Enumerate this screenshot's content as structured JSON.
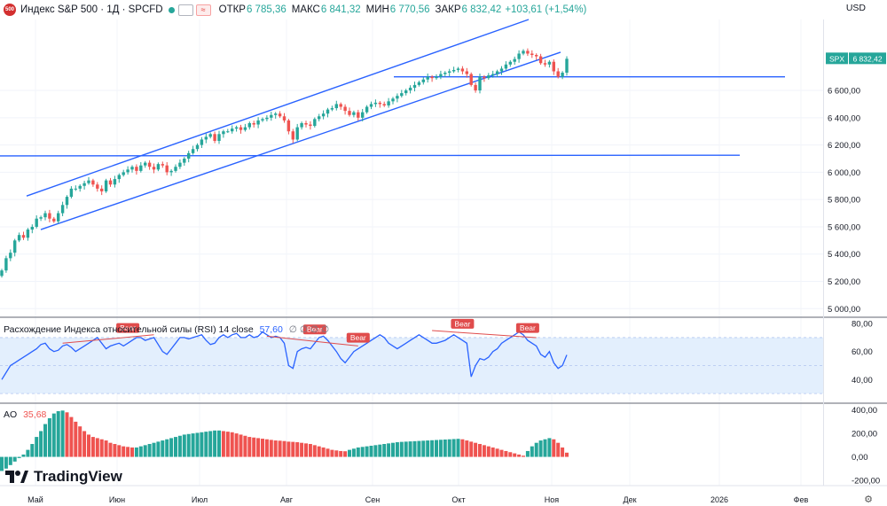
{
  "header": {
    "logo_badge": "500",
    "title": "Индекс S&P 500 · 1Д · SPCFD",
    "open_label": "ОТКР",
    "open_value": "6 785,36",
    "high_label": "МАКС",
    "high_value": "6 841,32",
    "low_label": "МИН",
    "low_value": "6 770,56",
    "close_label": "ЗАКР",
    "close_value": "6 832,42",
    "change": "+103,61 (+1,54%)",
    "currency": "USD"
  },
  "price_tag": {
    "symbol": "SPX",
    "value": "6 832,42"
  },
  "rsi_header": {
    "name": "Расхождение Индекса относительной силы (RSI)",
    "params": "14 close",
    "value": "57,60",
    "extra": "∅ ∅ ∅ ∅"
  },
  "ao_header": {
    "name": "AO",
    "value": "35,68"
  },
  "brand": "TradingView",
  "colors": {
    "up": "#26a69a",
    "down": "#ef5350",
    "line": "#2962ff",
    "rsi_band": "#e3effd",
    "bear": "#e04c4c"
  },
  "chart_data": [
    {
      "type": "candlestick",
      "ylim": [
        4950,
        7120
      ],
      "y_ticks": [
        "5 000,00",
        "5 200,00",
        "5 400,00",
        "5 600,00",
        "5 800,00",
        "6 000,00",
        "6 200,00",
        "6 400,00",
        "6 600,00"
      ],
      "x_ticks": [
        "Май",
        "Июн",
        "Июл",
        "Авг",
        "Сен",
        "Окт",
        "Ноя",
        "Дек",
        "2026",
        "Фев"
      ],
      "closes": [
        5280,
        5370,
        5410,
        5500,
        5540,
        5520,
        5580,
        5600,
        5660,
        5670,
        5700,
        5660,
        5640,
        5700,
        5760,
        5820,
        5880,
        5880,
        5900,
        5920,
        5940,
        5910,
        5880,
        5860,
        5940,
        5910,
        5950,
        5980,
        6000,
        6020,
        6040,
        6010,
        6050,
        6070,
        6040,
        6020,
        6060,
        6050,
        6000,
        6010,
        6040,
        6070,
        6100,
        6140,
        6170,
        6200,
        6240,
        6260,
        6280,
        6230,
        6280,
        6300,
        6300,
        6320,
        6330,
        6310,
        6330,
        6360,
        6350,
        6380,
        6390,
        6400,
        6420,
        6430,
        6410,
        6380,
        6300,
        6240,
        6330,
        6360,
        6350,
        6340,
        6390,
        6410,
        6430,
        6460,
        6470,
        6500,
        6480,
        6450,
        6420,
        6440,
        6400,
        6440,
        6480,
        6500,
        6510,
        6500,
        6490,
        6520,
        6540,
        6560,
        6580,
        6600,
        6620,
        6640,
        6660,
        6680,
        6700,
        6690,
        6700,
        6720,
        6730,
        6740,
        6750,
        6760,
        6740,
        6720,
        6640,
        6600,
        6700,
        6690,
        6710,
        6720,
        6740,
        6760,
        6790,
        6810,
        6830,
        6870,
        6890,
        6870,
        6860,
        6850,
        6800,
        6790,
        6810,
        6740,
        6700,
        6730,
        6832
      ],
      "horizontal_levels": [
        6700,
        6120
      ],
      "channel_upper": [
        [
          5826,
          7120
        ],
        [
          3,
          1
        ]
      ],
      "annotations": [
        "Bear",
        "Bear",
        "Bear",
        "Bear",
        "Bear"
      ]
    },
    {
      "type": "line",
      "name": "RSI",
      "ylim": [
        25,
        82
      ],
      "y_ticks": [
        "40,00",
        "60,00",
        "80,00"
      ],
      "values": [
        40,
        45,
        50,
        52,
        54,
        56,
        58,
        60,
        62,
        65,
        66,
        62,
        60,
        61,
        64,
        65,
        63,
        60,
        62,
        64,
        66,
        68,
        70,
        66,
        62,
        64,
        65,
        66,
        64,
        66,
        68,
        70,
        70,
        68,
        69,
        70,
        65,
        60,
        58,
        62,
        66,
        70,
        70,
        69,
        70,
        71,
        72,
        68,
        65,
        66,
        70,
        72,
        70,
        72,
        73,
        70,
        70,
        72,
        70,
        71,
        74,
        72,
        70,
        71,
        70,
        66,
        50,
        48,
        60,
        62,
        63,
        62,
        66,
        70,
        71,
        68,
        64,
        60,
        55,
        52,
        56,
        60,
        62,
        64,
        66,
        68,
        70,
        72,
        70,
        66,
        64,
        62,
        64,
        66,
        68,
        70,
        72,
        70,
        68,
        66,
        66,
        67,
        68,
        70,
        72,
        70,
        68,
        66,
        42,
        50,
        55,
        54,
        56,
        60,
        62,
        66,
        68,
        70,
        72,
        74,
        72,
        68,
        66,
        64,
        58,
        56,
        60,
        52,
        48,
        50,
        57.6
      ]
    },
    {
      "type": "bar",
      "name": "AO",
      "ylim": [
        -230,
        420
      ],
      "y_ticks": [
        "400,00",
        "200,00",
        "0,00",
        "-200,00"
      ],
      "values": [
        -120,
        -100,
        -70,
        -40,
        -10,
        20,
        60,
        110,
        170,
        220,
        280,
        330,
        370,
        390,
        395,
        380,
        340,
        300,
        260,
        220,
        190,
        170,
        160,
        150,
        140,
        120,
        110,
        100,
        90,
        85,
        80,
        80,
        90,
        100,
        110,
        120,
        130,
        140,
        150,
        160,
        170,
        180,
        190,
        195,
        200,
        205,
        210,
        215,
        220,
        225,
        225,
        220,
        215,
        210,
        200,
        190,
        180,
        170,
        165,
        160,
        155,
        150,
        145,
        140,
        138,
        135,
        130,
        128,
        125,
        120,
        115,
        110,
        100,
        90,
        80,
        70,
        60,
        55,
        50,
        48,
        60,
        70,
        80,
        85,
        90,
        95,
        100,
        105,
        110,
        115,
        120,
        125,
        128,
        130,
        132,
        134,
        136,
        138,
        140,
        142,
        144,
        146,
        148,
        150,
        152,
        154,
        150,
        140,
        130,
        120,
        110,
        100,
        90,
        80,
        70,
        60,
        50,
        40,
        30,
        20,
        10,
        50,
        90,
        120,
        140,
        150,
        160,
        150,
        120,
        80,
        36
      ]
    }
  ]
}
